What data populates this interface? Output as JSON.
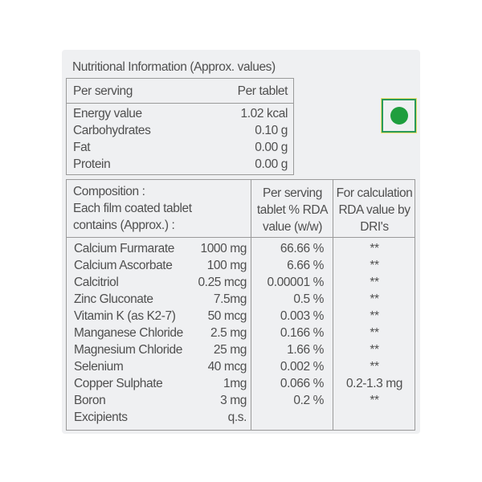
{
  "nutrition": {
    "title": "Nutritional Information (Approx. values)",
    "header": {
      "left": "Per serving",
      "right": "Per tablet"
    },
    "rows": [
      {
        "label": "Energy value",
        "value": "1.02 kcal"
      },
      {
        "label": "Carbohydrates",
        "value": "0.10 g"
      },
      {
        "label": "Fat",
        "value": "0.00 g"
      },
      {
        "label": "Protein",
        "value": "0.00 g"
      }
    ]
  },
  "veg_mark": {
    "icon": "vegetarian-mark-icon",
    "color": "#1f9e3e"
  },
  "composition": {
    "headers": {
      "col1": [
        "Composition :",
        "Each film coated tablet",
        "contains (Approx.) :"
      ],
      "col2": [
        "Per serving",
        "tablet % RDA",
        "value (w/w)"
      ],
      "col3": [
        "For calculation",
        "RDA value by",
        "DRI's"
      ]
    },
    "rows": [
      {
        "name": "Calcium Furmarate",
        "qty": "1000 mg",
        "pct": "66.66 %",
        "dri": "**"
      },
      {
        "name": "Calcium Ascorbate",
        "qty": "100 mg",
        "pct": "6.66 %",
        "dri": "**"
      },
      {
        "name": "Calcitriol",
        "qty": "0.25 mcg",
        "pct": "0.00001 %",
        "dri": "**"
      },
      {
        "name": "Zinc Gluconate",
        "qty": "7.5mg",
        "pct": "0.5 %",
        "dri": "**"
      },
      {
        "name": "Vitamin K (as K2-7)",
        "qty": "50 mcg",
        "pct": "0.003 %",
        "dri": "**"
      },
      {
        "name": "Manganese Chloride",
        "qty": "2.5 mg",
        "pct": "0.166 %",
        "dri": "**"
      },
      {
        "name": "Magnesium Chloride",
        "qty": "25 mg",
        "pct": "1.66 %",
        "dri": "**"
      },
      {
        "name": "Selenium",
        "qty": "40 mcg",
        "pct": "0.002 %",
        "dri": "**"
      },
      {
        "name": "Copper Sulphate",
        "qty": "1mg",
        "pct": "0.066 %",
        "dri": "0.2-1.3 mg"
      },
      {
        "name": "Boron",
        "qty": "3 mg",
        "pct": "0.2 %",
        "dri": "**"
      },
      {
        "name": "Excipients",
        "qty": "q.s.",
        "pct": "",
        "dri": ""
      }
    ]
  }
}
